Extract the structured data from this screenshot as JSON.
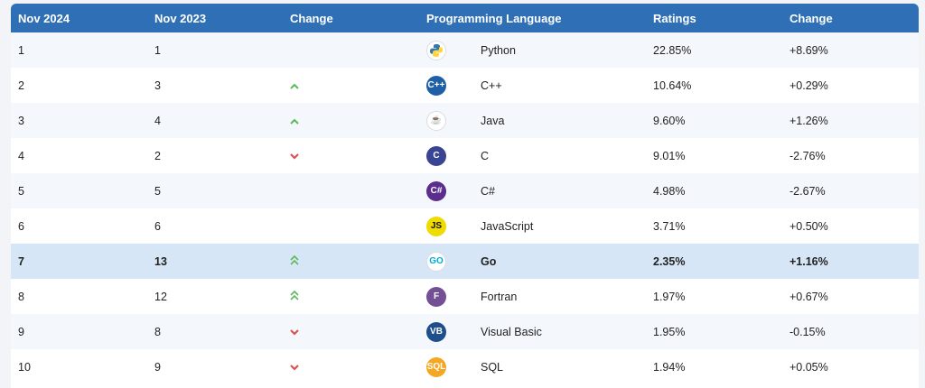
{
  "header": {
    "col_nov2024": "Nov 2024",
    "col_nov2023": "Nov 2023",
    "col_change": "Change",
    "col_language": "Programming Language",
    "col_ratings": "Ratings",
    "col_change2": "Change"
  },
  "rows": [
    {
      "rank2024": "1",
      "rank2023": "1",
      "trend": "none",
      "icon": "python-icon",
      "logo_text": "",
      "logo_color": "#3776ab",
      "language": "Python",
      "rating": "22.85%",
      "change": "+8.69%"
    },
    {
      "rank2024": "2",
      "rank2023": "3",
      "trend": "up",
      "icon": "cpp-icon",
      "logo_text": "C++",
      "logo_color": "#1f5fa8",
      "language": "C++",
      "rating": "10.64%",
      "change": "+0.29%"
    },
    {
      "rank2024": "3",
      "rank2023": "4",
      "trend": "up",
      "icon": "java-icon",
      "logo_text": "☕",
      "logo_color": "#e76f00",
      "language": "Java",
      "rating": "9.60%",
      "change": "+1.26%"
    },
    {
      "rank2024": "4",
      "rank2023": "2",
      "trend": "down",
      "icon": "c-icon",
      "logo_text": "C",
      "logo_color": "#394493",
      "language": "C",
      "rating": "9.01%",
      "change": "-2.76%"
    },
    {
      "rank2024": "5",
      "rank2023": "5",
      "trend": "none",
      "icon": "csharp-icon",
      "logo_text": "C#",
      "logo_color": "#5b2d8e",
      "language": "C#",
      "rating": "4.98%",
      "change": "-2.67%"
    },
    {
      "rank2024": "6",
      "rank2023": "6",
      "trend": "none",
      "icon": "javascript-icon",
      "logo_text": "JS",
      "logo_color": "#f0db00",
      "language": "JavaScript",
      "rating": "3.71%",
      "change": "+0.50%"
    },
    {
      "rank2024": "7",
      "rank2023": "13",
      "trend": "double-up",
      "icon": "go-icon",
      "logo_text": "GO",
      "logo_color": "#00acd7",
      "language": "Go",
      "rating": "2.35%",
      "change": "+1.16%",
      "highlight": true
    },
    {
      "rank2024": "8",
      "rank2023": "12",
      "trend": "double-up",
      "icon": "fortran-icon",
      "logo_text": "F",
      "logo_color": "#734f96",
      "language": "Fortran",
      "rating": "1.97%",
      "change": "+0.67%"
    },
    {
      "rank2024": "9",
      "rank2023": "8",
      "trend": "down",
      "icon": "visual-basic-icon",
      "logo_text": "VB",
      "logo_color": "#1e4e8c",
      "language": "Visual Basic",
      "rating": "1.95%",
      "change": "-0.15%"
    },
    {
      "rank2024": "10",
      "rank2023": "9",
      "trend": "down",
      "icon": "sql-icon",
      "logo_text": "SQL",
      "logo_color": "#f5a623",
      "language": "SQL",
      "rating": "1.94%",
      "change": "+0.05%"
    }
  ],
  "colors": {
    "header_bg": "#2f6fb5",
    "highlight_bg": "#d6e6f6",
    "up_arrow": "#5cb85c",
    "down_arrow": "#d9534f"
  }
}
